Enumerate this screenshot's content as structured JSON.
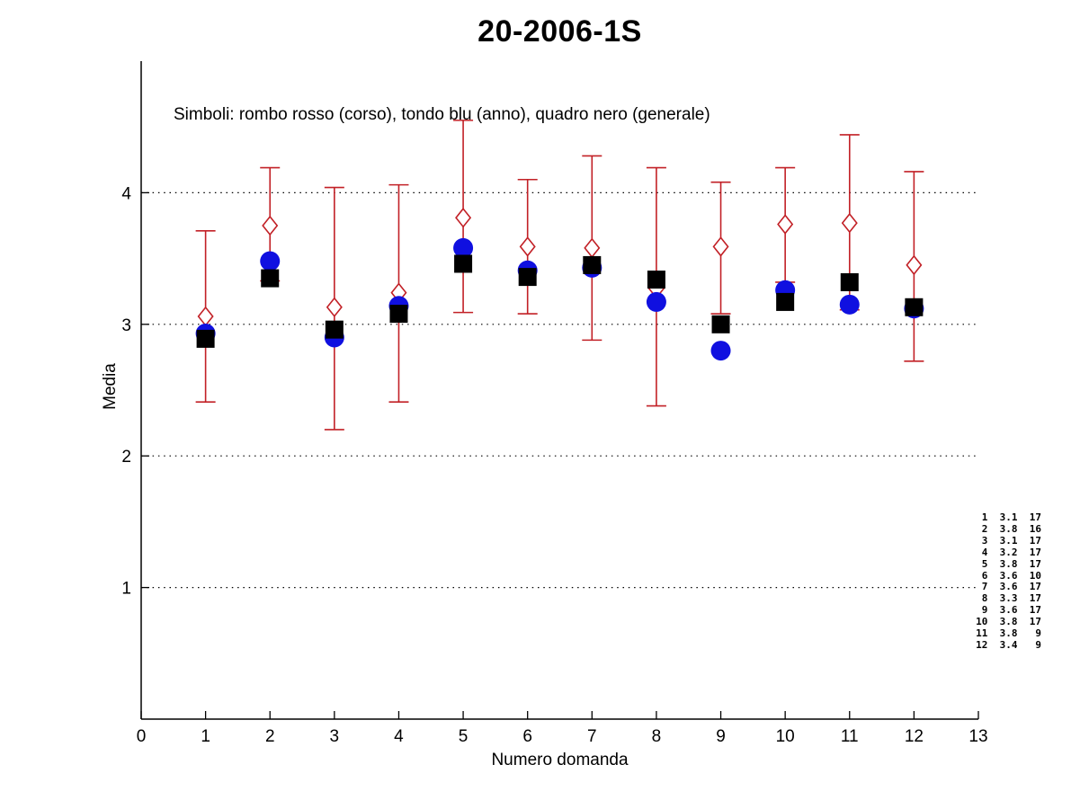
{
  "title": "20-2006-1S",
  "subtitle": "Simboli: rombo rosso (corso), tondo blu (anno), quadro nero (generale)",
  "xlabel": "Numero domanda",
  "ylabel": "Media",
  "colors": {
    "corso": "#C22026",
    "anno": "#1010E0",
    "generale": "#000000",
    "axis": "#000000"
  },
  "chart_data": {
    "type": "scatter",
    "x": [
      1,
      2,
      3,
      4,
      5,
      6,
      7,
      8,
      9,
      10,
      11,
      12
    ],
    "xlim": [
      0,
      13
    ],
    "ylim": [
      0,
      5
    ],
    "xticks": [
      0,
      1,
      2,
      3,
      4,
      5,
      6,
      7,
      8,
      9,
      10,
      11,
      12,
      13
    ],
    "yticks": [
      1,
      2,
      3,
      4
    ],
    "grid": "horizontal-dotted",
    "series": [
      {
        "name": "corso",
        "marker": "diamond",
        "color": "#C22026",
        "values": [
          3.06,
          3.75,
          3.13,
          3.24,
          3.81,
          3.59,
          3.58,
          3.27,
          3.59,
          3.76,
          3.77,
          3.45
        ],
        "err_top": [
          3.71,
          4.19,
          4.04,
          4.06,
          4.55,
          4.1,
          4.28,
          4.19,
          4.08,
          4.19,
          4.44,
          4.16
        ],
        "err_bot": [
          2.41,
          3.33,
          2.2,
          2.41,
          3.09,
          3.08,
          2.88,
          2.38,
          3.08,
          3.32,
          3.11,
          2.72
        ]
      },
      {
        "name": "anno",
        "marker": "circle",
        "color": "#1010E0",
        "values": [
          2.93,
          3.48,
          2.9,
          3.14,
          3.58,
          3.41,
          3.43,
          3.17,
          2.8,
          3.26,
          3.15,
          3.12
        ]
      },
      {
        "name": "generale",
        "marker": "square",
        "color": "#000000",
        "values": [
          2.89,
          3.35,
          2.96,
          3.08,
          3.46,
          3.36,
          3.45,
          3.34,
          3.0,
          3.17,
          3.32,
          3.13
        ]
      }
    ]
  },
  "annotation_table": {
    "rows": [
      [
        1,
        "3.1",
        17
      ],
      [
        2,
        "3.8",
        16
      ],
      [
        3,
        "3.1",
        17
      ],
      [
        4,
        "3.2",
        17
      ],
      [
        5,
        "3.8",
        17
      ],
      [
        6,
        "3.6",
        10
      ],
      [
        7,
        "3.6",
        17
      ],
      [
        8,
        "3.3",
        17
      ],
      [
        9,
        "3.6",
        17
      ],
      [
        10,
        "3.8",
        17
      ],
      [
        11,
        "3.8",
        9
      ],
      [
        12,
        "3.4",
        9
      ]
    ]
  }
}
